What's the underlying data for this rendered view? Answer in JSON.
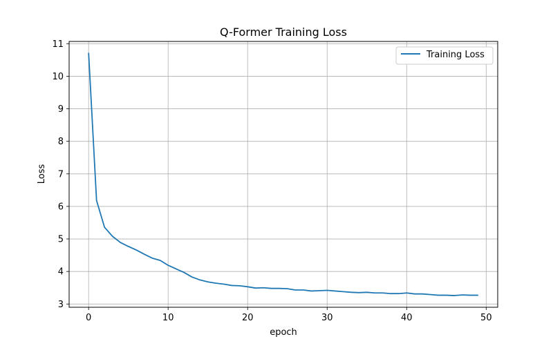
{
  "chart_data": {
    "type": "line",
    "title": "Q-Former Training Loss",
    "xlabel": "epoch",
    "ylabel": "Loss",
    "xlim": [
      -2.45,
      51.45
    ],
    "ylim": [
      2.9,
      11.07
    ],
    "xticks": [
      0,
      10,
      20,
      30,
      40,
      50
    ],
    "yticks": [
      3,
      4,
      5,
      6,
      7,
      8,
      9,
      10,
      11
    ],
    "grid": true,
    "legend": {
      "position": "top-right",
      "entries": [
        "Training Loss"
      ]
    },
    "series": [
      {
        "name": "Training Loss",
        "color": "#1f77b4",
        "x": [
          0,
          1,
          2,
          3,
          4,
          5,
          6,
          7,
          8,
          9,
          10,
          11,
          12,
          13,
          14,
          15,
          16,
          17,
          18,
          19,
          20,
          21,
          22,
          23,
          24,
          25,
          26,
          27,
          28,
          29,
          30,
          31,
          32,
          33,
          34,
          35,
          36,
          37,
          38,
          39,
          40,
          41,
          42,
          43,
          44,
          45,
          46,
          47,
          48,
          49
        ],
        "y": [
          10.72,
          6.18,
          5.36,
          5.08,
          4.89,
          4.77,
          4.66,
          4.53,
          4.41,
          4.34,
          4.19,
          4.08,
          3.97,
          3.83,
          3.74,
          3.68,
          3.64,
          3.61,
          3.57,
          3.56,
          3.53,
          3.49,
          3.5,
          3.48,
          3.48,
          3.47,
          3.43,
          3.43,
          3.4,
          3.41,
          3.42,
          3.4,
          3.38,
          3.36,
          3.35,
          3.36,
          3.34,
          3.34,
          3.32,
          3.32,
          3.34,
          3.31,
          3.31,
          3.29,
          3.27,
          3.27,
          3.26,
          3.28,
          3.27,
          3.27
        ]
      }
    ]
  }
}
